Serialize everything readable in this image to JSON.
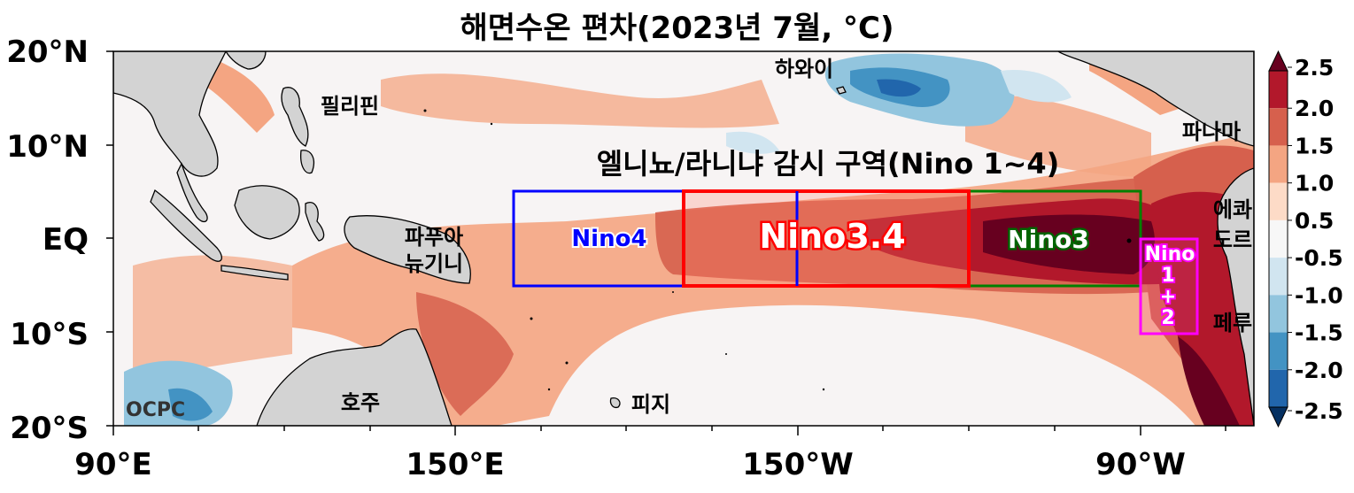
{
  "title": "해면수온 편차(2023년 7월, °C)",
  "subtitle": "엘니뇨/라니냐 감시 구역(Nino 1~4)",
  "lat_labels": [
    "20°N",
    "10°N",
    "EQ",
    "10°S",
    "20°S"
  ],
  "lon_labels": [
    "90°E",
    "150°E",
    "150°W",
    "90°W"
  ],
  "places": {
    "hawaii": "하와이",
    "philippines": "필리핀",
    "panama": "파나마",
    "ecuador_1": "에콰",
    "ecuador_2": "도르",
    "papua_1": "파푸아",
    "papua_2": "뉴기니",
    "peru": "페루",
    "australia": "호주",
    "fiji": "피지"
  },
  "regions": {
    "nino4": "Nino4",
    "nino34": "Nino3.4",
    "nino3": "Nino3",
    "nino12": [
      "Nino",
      "1",
      "+",
      "2"
    ]
  },
  "logo": "OCPC",
  "colorbar": {
    "ticks": [
      "2.5",
      "2.0",
      "1.5",
      "1.0",
      "0.5",
      "-0.5",
      "-1.0",
      "-1.5",
      "-2.0",
      "-2.5"
    ],
    "colors": [
      "#67001f",
      "#b2182b",
      "#d6604d",
      "#f4a582",
      "#fddbc7",
      "#f7f7f7",
      "#d1e5f0",
      "#92c5de",
      "#4393c3",
      "#2166ac",
      "#053061"
    ]
  }
}
